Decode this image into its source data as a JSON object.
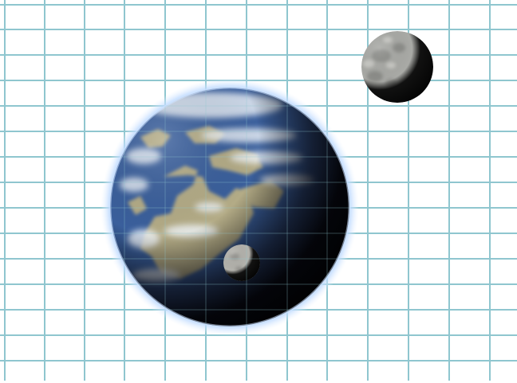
{
  "scene": {
    "subject": "planet-with-two-moons",
    "background": {
      "type": "grid-paper",
      "paper_color": "#ffffff",
      "line_color": "#8fc6cf"
    },
    "bodies": [
      {
        "kind": "planet",
        "icon": "planet-icon",
        "ocean_color": "#3a5f9c",
        "land_color": "#b3ab86",
        "cloud_color": "#eef3f8",
        "atmosphere_color": "#d6e8ff",
        "shadow_color": "#0b0b0f"
      },
      {
        "kind": "moon",
        "icon": "moon-icon",
        "surface_color": "#a9aaa6",
        "shadow_color": "#050505"
      },
      {
        "kind": "moon",
        "icon": "moon-icon",
        "surface_color": "#b4b3ad",
        "shadow_color": "#050505"
      }
    ]
  }
}
